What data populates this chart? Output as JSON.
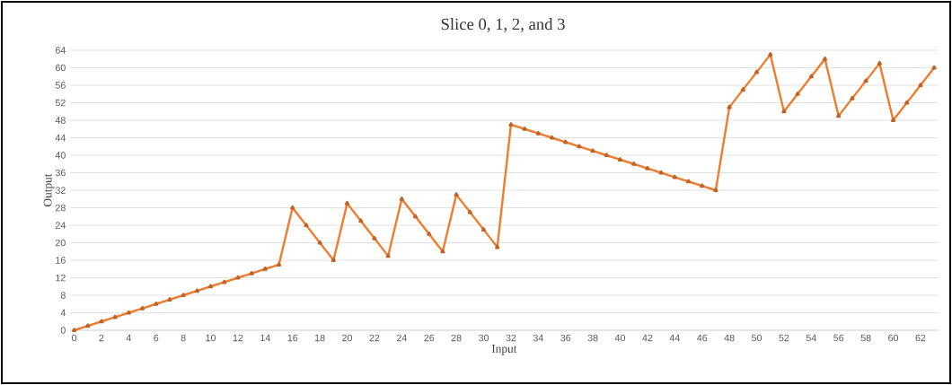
{
  "chart_data": {
    "type": "line",
    "title": "Slice 0, 1, 2, and 3",
    "xlabel": "Input",
    "ylabel": "Output",
    "categories": [
      "0",
      null,
      "2",
      null,
      "4",
      null,
      "6",
      null,
      "8",
      null,
      "10",
      null,
      "12",
      null,
      "14",
      null,
      "16",
      null,
      "18",
      null,
      "20",
      null,
      "22",
      null,
      "24",
      null,
      "26",
      null,
      "28",
      null,
      "30",
      null,
      "32",
      null,
      "34",
      null,
      "36",
      null,
      "38",
      null,
      "40",
      null,
      "42",
      null,
      "44",
      null,
      "46",
      null,
      "48",
      null,
      "50",
      null,
      "52",
      null,
      "54",
      null,
      "56",
      null,
      "58",
      null,
      "60",
      null,
      "62",
      null
    ],
    "series": [
      {
        "color": "#ed7d31",
        "values": [
          0,
          1,
          2,
          3,
          4,
          5,
          6,
          7,
          8,
          9,
          10,
          11,
          12,
          13,
          14,
          15,
          28,
          24,
          20,
          16,
          29,
          25,
          21,
          17,
          30,
          26,
          22,
          18,
          31,
          27,
          23,
          19,
          47,
          46,
          45,
          44,
          43,
          42,
          41,
          40,
          39,
          38,
          37,
          36,
          35,
          34,
          33,
          32,
          51,
          55,
          59,
          63,
          50,
          54,
          58,
          62,
          49,
          53,
          57,
          61,
          48,
          52,
          56,
          60
        ]
      }
    ],
    "ylim": [
      0,
      64
    ],
    "yticks": [
      0,
      4,
      8,
      12,
      16,
      20,
      24,
      28,
      32,
      36,
      40,
      44,
      48,
      52,
      56,
      60,
      64
    ],
    "grid": "y",
    "marker": "triangle",
    "line_style": "solid",
    "legend": false
  }
}
